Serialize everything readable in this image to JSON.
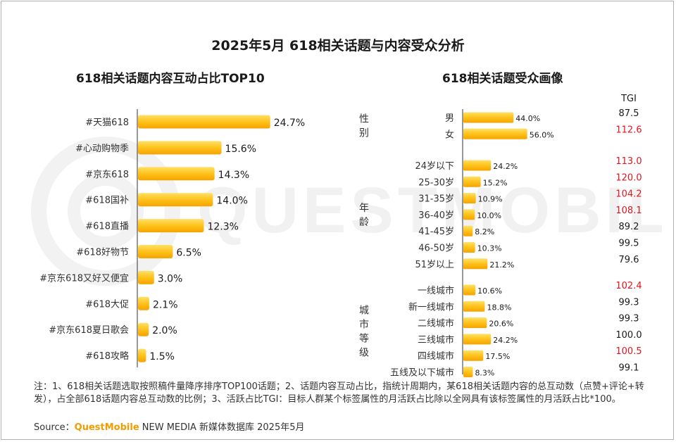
{
  "title": "2025年5月 618相关话题与内容受众分析",
  "chart_data": [
    {
      "type": "bar",
      "orientation": "horizontal",
      "title": "618相关话题内容互动占比TOP10",
      "unit": "%",
      "categories": [
        "#天猫618",
        "#心动购物季",
        "#京东618",
        "#618国补",
        "#618直播",
        "#618好物节",
        "#京东618又好又便宜",
        "#618大促",
        "#京东618夏日歌会",
        "#618攻略"
      ],
      "values": [
        24.7,
        15.6,
        14.3,
        14.0,
        12.3,
        6.5,
        3.0,
        2.1,
        2.0,
        1.5
      ]
    },
    {
      "type": "bar",
      "orientation": "horizontal",
      "title": "618相关话题受众画像",
      "unit": "%",
      "tgi_header": "TGI",
      "groups": [
        {
          "label": "性别",
          "categories": [
            "男",
            "女"
          ],
          "values": [
            44.0,
            56.0
          ],
          "tgi": [
            87.5,
            112.6
          ]
        },
        {
          "label": "年龄",
          "categories": [
            "24岁以下",
            "25-30岁",
            "31-35岁",
            "36-40岁",
            "41-45岁",
            "46-50岁",
            "51岁以上"
          ],
          "values": [
            24.2,
            15.2,
            10.9,
            10.0,
            8.2,
            10.3,
            21.2
          ],
          "tgi": [
            113.0,
            120.0,
            104.2,
            108.1,
            89.2,
            99.5,
            79.6
          ]
        },
        {
          "label": "城市等级",
          "categories": [
            "一线城市",
            "新一线城市",
            "二线城市",
            "三线城市",
            "四线城市",
            "五线及以下城市"
          ],
          "values": [
            10.6,
            18.8,
            20.6,
            24.2,
            17.5,
            8.3
          ],
          "tgi": [
            102.4,
            99.3,
            99.3,
            100.0,
            100.5,
            99.1
          ]
        }
      ]
    }
  ],
  "colors": {
    "bar_light": "#ffd84a",
    "bar_dark": "#f6a800",
    "tgi_high": "#e0161e",
    "tgi_normal": "#1a1a1a",
    "axis": "#333333"
  },
  "note": "注：1、618相关话题选取按照稿件量降序排序TOP100话题；2、话题内容互动占比，指统计周期内，某618相关话题内容的总互动数（点赞+评论+转发），占全部618话题内容总互动数的比例；3、活跃占比TGI：目标人群某个标签属性的月活跃占比除以全网具有该标签属性的月活跃占比*100。",
  "source": {
    "prefix": "Source：",
    "brand": "QuestMobile",
    "suffix": " NEW MEDIA 新媒体数据库 2025年5月"
  },
  "watermark": "QUESTMOBILE"
}
